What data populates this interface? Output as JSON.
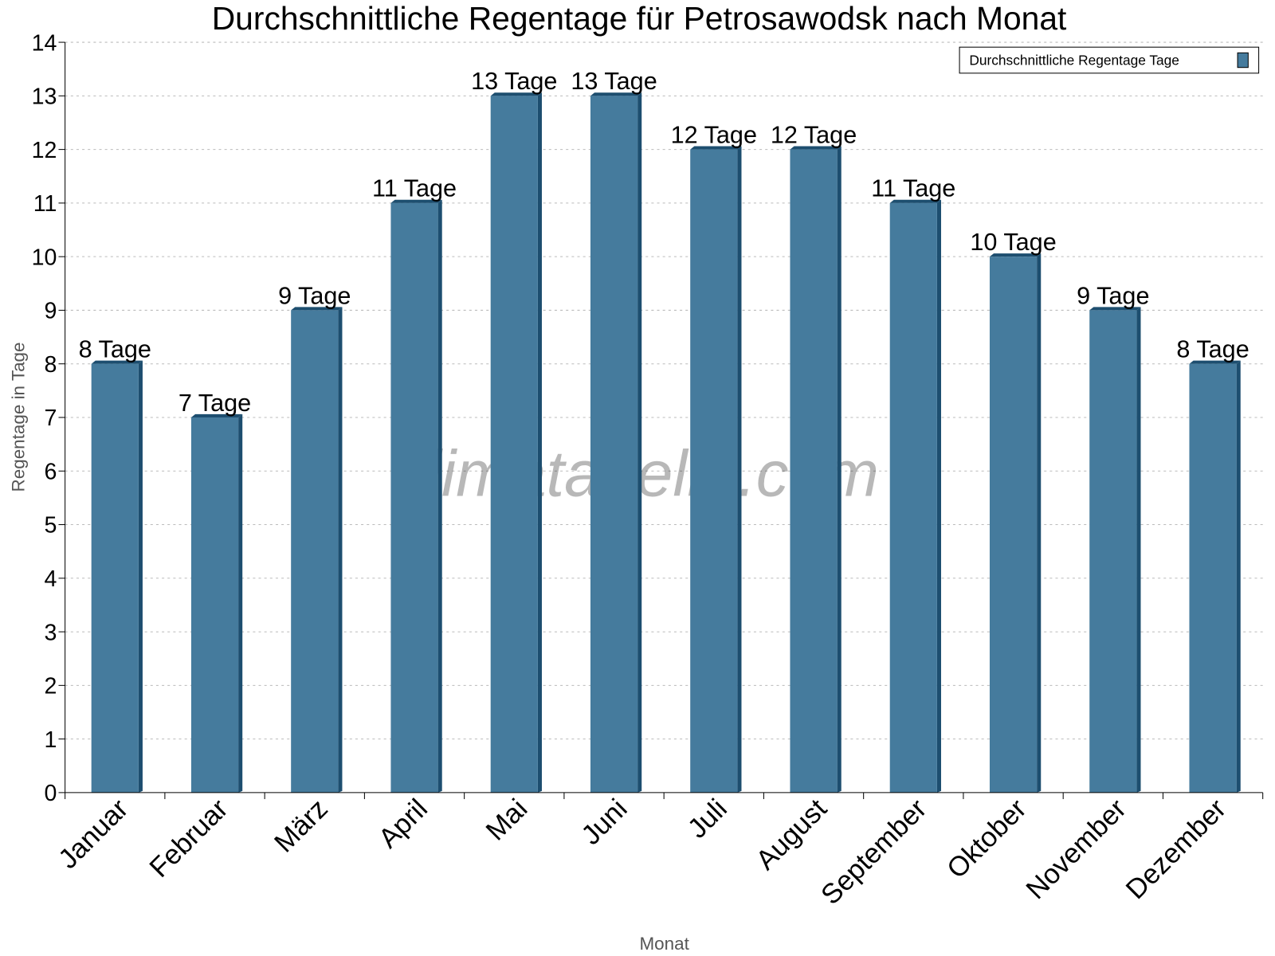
{
  "chart_data": {
    "type": "bar",
    "title": "Durchschnittliche Regentage für Petrosawodsk nach Monat",
    "xlabel": "Monat",
    "ylabel": "Regentage in Tage",
    "ylim": [
      0,
      14
    ],
    "yticks": [
      0,
      1,
      2,
      3,
      4,
      5,
      6,
      7,
      8,
      9,
      10,
      11,
      12,
      13,
      14
    ],
    "grid": true,
    "legend_position": "top-right",
    "categories": [
      "Januar",
      "Februar",
      "März",
      "April",
      "Mai",
      "Juni",
      "Juli",
      "August",
      "September",
      "Oktober",
      "November",
      "Dezember"
    ],
    "series": [
      {
        "name": "Durchschnittliche Regentage Tage",
        "values": [
          8,
          7,
          9,
          11,
          13,
          13,
          12,
          12,
          11,
          10,
          9,
          8
        ],
        "color": "#457b9d",
        "side_color": "#1d4e6f"
      }
    ],
    "data_labels": [
      "8 Tage",
      "7 Tage",
      "9 Tage",
      "11 Tage",
      "13 Tage",
      "13 Tage",
      "12 Tage",
      "12 Tage",
      "11 Tage",
      "10 Tage",
      "9 Tage",
      "8 Tage"
    ],
    "watermark": "klimatabelle.com"
  }
}
